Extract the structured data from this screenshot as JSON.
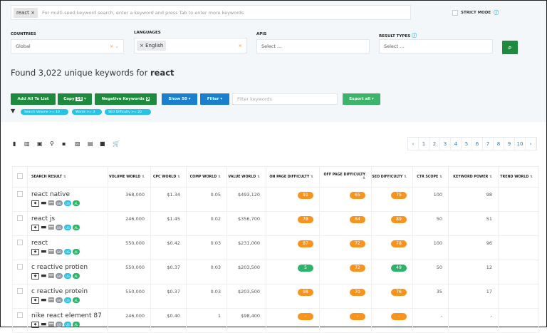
{
  "search": {
    "tag": "react",
    "placeholder": "For multi-seed keyword search, enter a keyword and press Tab to enter more keywords",
    "strict_mode": "STRICT MODE"
  },
  "filters": {
    "countries_label": "COUNTRIES",
    "countries_value": "Global",
    "languages_label": "LANGUAGES",
    "languages_value": "English",
    "apis_label": "APIS",
    "apis_placeholder": "Select ...",
    "result_types_label": "RESULT TYPES",
    "result_types_placeholder": "Select ..."
  },
  "found": {
    "prefix": "Found 3,022 unique keywords for ",
    "keyword": "react"
  },
  "toolbar": {
    "add_all": "Add All To List",
    "copy": "Copy",
    "copy_count": "18",
    "negative": "Negative Keywords",
    "negative_count": "0",
    "show": "Show 50",
    "filter": "Filter",
    "filter_placeholder": "Filter keywords",
    "export": "Export all"
  },
  "chips": [
    "Search Volume >= 10",
    "Words >= 3",
    "SEO Difficulty >= 20"
  ],
  "pagination": [
    "1",
    "2",
    "3",
    "4",
    "5",
    "6",
    "7",
    "8",
    "9",
    "10"
  ],
  "columns": [
    "SEARCH RESULT",
    "VOLUME WORLD",
    "CPC WORLD",
    "COMP WORLD",
    "VALUE WORLD",
    "ON PAGE DIFFICULTY",
    "OFF PAGE DIFFICULTY",
    "SEO DIFFICULTY",
    "CTR SCOPE",
    "KEYWORD POWER",
    "TREND WORLD"
  ],
  "badges": [
    "GO",
    "US",
    "AL"
  ],
  "colors": {
    "orange": "#f7941d",
    "green": "#2db36a",
    "primary_green": "#1e8a3e",
    "blue": "#1a7fcf",
    "chip": "#25c3e6"
  },
  "rows": [
    {
      "keyword": "react native",
      "volume": "368,000",
      "cpc": "$1.34",
      "comp": "0.05",
      "value": "$493,120",
      "on_page": "91",
      "off_page": "65",
      "seo": "75",
      "ctr": "100",
      "power": "98"
    },
    {
      "keyword": "react js",
      "volume": "246,000",
      "cpc": "$1.45",
      "comp": "0.02",
      "value": "$356,700",
      "on_page": "78",
      "off_page": "64",
      "seo": "89",
      "ctr": "50",
      "power": "51"
    },
    {
      "keyword": "react",
      "volume": "550,000",
      "cpc": "$0.42",
      "comp": "0.03",
      "value": "$231,000",
      "on_page": "87",
      "off_page": "72",
      "seo": "78",
      "ctr": "100",
      "power": "96"
    },
    {
      "keyword": "c reactive protien",
      "volume": "550,000",
      "cpc": "$0.37",
      "comp": "0.03",
      "value": "$203,500",
      "on_page": "5",
      "off_page": "72",
      "seo": "49",
      "ctr": "50",
      "power": "12"
    },
    {
      "keyword": "c reactive protein",
      "volume": "550,000",
      "cpc": "$0.37",
      "comp": "0.03",
      "value": "$203,500",
      "on_page": "98",
      "off_page": "70",
      "seo": "76",
      "ctr": "35",
      "power": "17"
    },
    {
      "keyword": "nike react element 87",
      "volume": "246,000",
      "cpc": "$0.40",
      "comp": "1",
      "value": "$98,400",
      "on_page": "-",
      "off_page": "-",
      "seo": "-",
      "ctr": "-",
      "power": "-"
    }
  ]
}
